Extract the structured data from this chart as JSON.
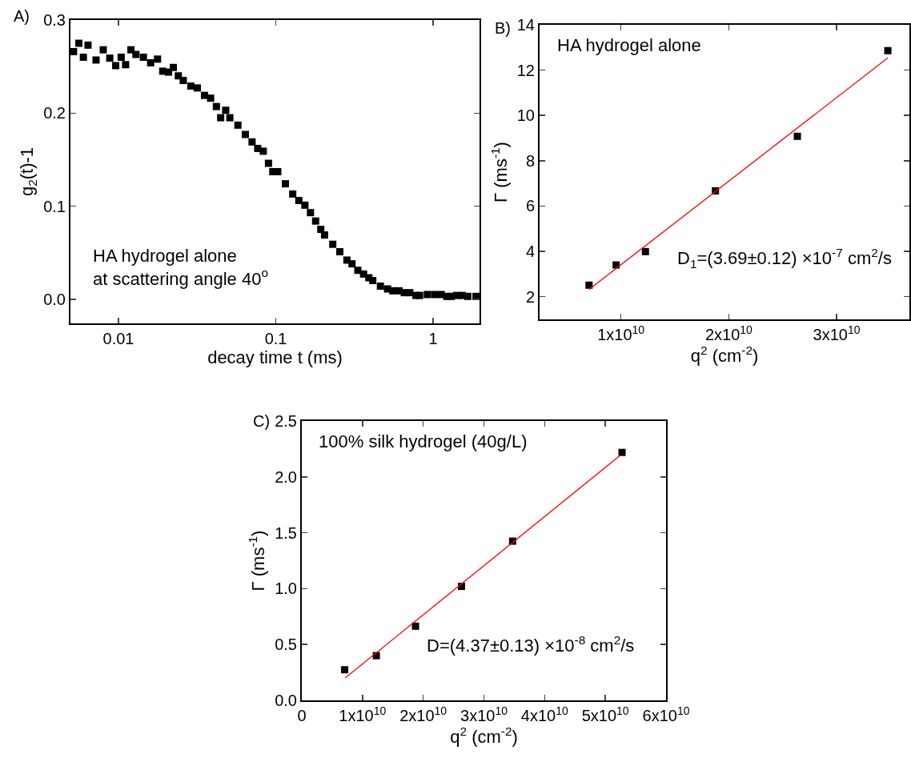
{
  "chart_data": [
    {
      "type": "scatter",
      "xlabel": "decay time t (ms)",
      "ylabel": "g$_{2}$(t)-1",
      "log": "x",
      "marker": "square",
      "grid": false,
      "xlim": [
        0.00495,
        1.97
      ],
      "xticks": [
        0.01,
        0.1,
        1
      ],
      "ylim": [
        -0.026,
        0.3
      ],
      "yticks": [
        {
          "value": 0,
          "label": "0.0"
        },
        0.1,
        0.2,
        0.3
      ],
      "annotations": [
        "A)",
        "HA hydrogel alone\nat scattering angle 40$^{o}$"
      ],
      "series": [
        {
          "color": "#000000",
          "x": [
            0.00518,
            0.0056,
            0.00598,
            0.0064,
            0.0072,
            0.008,
            0.0088,
            0.0096,
            0.0104,
            0.0111,
            0.012,
            0.0129,
            0.0144,
            0.016,
            0.0177,
            0.0191,
            0.0208,
            0.0223,
            0.024,
            0.0258,
            0.0288,
            0.0317,
            0.0352,
            0.0385,
            0.0419,
            0.0446,
            0.048,
            0.051,
            0.0574,
            0.064,
            0.0706,
            0.0767,
            0.0832,
            0.0898,
            0.0956,
            0.1028,
            0.115,
            0.128,
            0.14,
            0.153,
            0.166,
            0.179,
            0.193,
            0.204,
            0.23,
            0.255,
            0.283,
            0.305,
            0.332,
            0.361,
            0.39,
            0.413,
            0.462,
            0.513,
            0.554,
            0.607,
            0.655,
            0.71,
            0.777,
            0.82,
            0.918,
            1.02,
            1.125,
            1.22,
            1.3,
            1.41,
            1.53,
            1.66,
            1.87
          ],
          "values": [
            0.266,
            0.275,
            0.26,
            0.273,
            0.257,
            0.268,
            0.259,
            0.251,
            0.26,
            0.252,
            0.268,
            0.263,
            0.26,
            0.254,
            0.258,
            0.245,
            0.244,
            0.249,
            0.24,
            0.235,
            0.229,
            0.227,
            0.219,
            0.216,
            0.207,
            0.195,
            0.203,
            0.195,
            0.187,
            0.177,
            0.169,
            0.162,
            0.159,
            0.146,
            0.137,
            0.137,
            0.124,
            0.113,
            0.106,
            0.101,
            0.093,
            0.084,
            0.075,
            0.069,
            0.059,
            0.051,
            0.042,
            0.038,
            0.031,
            0.027,
            0.023,
            0.02,
            0.014,
            0.011,
            0.009,
            0.009,
            0.007,
            0.007,
            0.004,
            0.004,
            0.005,
            0.005,
            0.005,
            0.003,
            0.003,
            0.004,
            0.004,
            0.003,
            0.003
          ]
        }
      ]
    },
    {
      "type": "scatter",
      "xlabel": "q$^{2}$ (cm$^{-2}$)",
      "ylabel": "Γ (ms$^{-1}$)",
      "grid": false,
      "xlim": [
        2450000000,
        36750000000
      ],
      "xticks": [
        {
          "value": 10000000000,
          "label": "1x10$^{10}$"
        },
        {
          "value": 20000000000,
          "label": "2x10$^{10}$"
        },
        {
          "value": 30000000000,
          "label": "3x10$^{10}$"
        }
      ],
      "ylim": [
        1,
        14
      ],
      "yticks": [
        2,
        4,
        6,
        8,
        10,
        12,
        14
      ],
      "annotations": [
        "B)",
        "HA hydrogel alone",
        "D$_{1}$=(3.69±0.12) ×10$^{-7}$ cm$^{2}$/s"
      ],
      "series": [
        {
          "color": "#000000",
          "marker": "square",
          "x": [
            7040000000,
            9550000000,
            12270000000,
            18760000000,
            26360000000,
            34750000000
          ],
          "values": [
            2.51,
            3.4,
            3.99,
            6.67,
            9.08,
            12.86
          ]
        },
        {
          "type": "line",
          "marker": "none",
          "color": "#ff0000",
          "line_style": "solid",
          "x": [
            7040000000,
            34750000000
          ],
          "values": [
            2.32,
            12.54
          ]
        }
      ]
    },
    {
      "type": "scatter",
      "xlabel": "q$^{2}$ (cm$^{-2}$)",
      "ylabel": "Γ (ms$^{-1}$)",
      "grid": false,
      "xlim": [
        0,
        60000000000
      ],
      "xticks": [
        0,
        {
          "value": 10000000000,
          "label": "1x10$^{10}$"
        },
        {
          "value": 20000000000,
          "label": "2x10$^{10}$"
        },
        {
          "value": 30000000000,
          "label": "3x10$^{10}$"
        },
        {
          "value": 40000000000,
          "label": "4x10$^{10}$"
        },
        {
          "value": 50000000000,
          "label": "5x10$^{10}$"
        },
        {
          "value": 60000000000,
          "label": "6x10$^{10}$"
        }
      ],
      "ylim": [
        0,
        2.5
      ],
      "yticks": [
        {
          "value": 0,
          "label": "0.0"
        },
        0.5,
        {
          "value": 1,
          "label": "1.0"
        },
        1.5,
        {
          "value": 2,
          "label": "2.0"
        },
        2.5
      ],
      "annotations": [
        "C)",
        "100% silk hydrogel (40g/L)",
        "D=(4.37±0.13) ×10$^{-8}$ cm$^{2}$/s"
      ],
      "series": [
        {
          "color": "#000000",
          "marker": "square",
          "x": [
            7060000000,
            12280000000,
            18730000000,
            26310000000,
            34730000000,
            52750000000
          ],
          "values": [
            0.274,
            0.4,
            0.664,
            1.02,
            1.425,
            2.219
          ]
        },
        {
          "type": "line",
          "marker": "none",
          "color": "#ff0000",
          "line_style": "solid",
          "x": [
            7150000000,
            52470000000
          ],
          "values": [
            0.2,
            2.194
          ]
        }
      ]
    }
  ]
}
